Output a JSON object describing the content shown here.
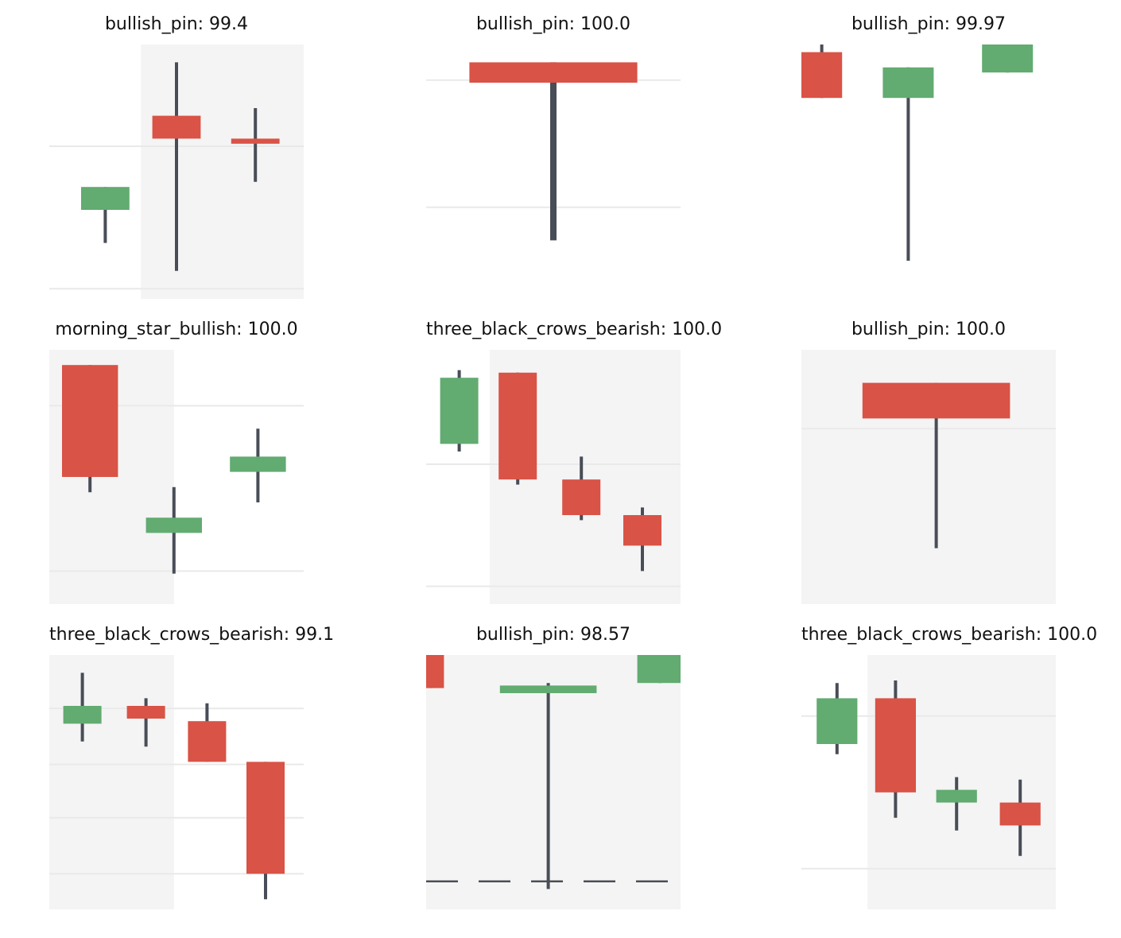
{
  "colors": {
    "bullish": "#62ab71",
    "bearish": "#d95346",
    "wick": "#484d57",
    "shade": "#f4f4f4",
    "grid": "#e9e9e9"
  },
  "chart_data": [
    {
      "type": "candlestick",
      "title": "bullish_pin: 99.4",
      "ylim": [
        0,
        100
      ],
      "shade": [
        0.36,
        1.0
      ],
      "grid": [
        [
          60,
          "solid"
        ],
        [
          4,
          "solid"
        ]
      ],
      "candles": [
        {
          "x": 0.22,
          "w": 0.19,
          "open": 35,
          "close": 44,
          "high": 44,
          "low": 22
        },
        {
          "x": 0.5,
          "w": 0.19,
          "open": 72,
          "close": 63,
          "high": 93,
          "low": 11
        },
        {
          "x": 0.81,
          "w": 0.19,
          "open": 63,
          "close": 61,
          "high": 75,
          "low": 46
        }
      ]
    },
    {
      "type": "candlestick",
      "title": "bullish_pin: 100.0",
      "ylim": [
        0,
        100
      ],
      "shade": [
        0.0,
        0.0
      ],
      "grid": [
        [
          86,
          "solid"
        ],
        [
          36,
          "solid"
        ]
      ],
      "candles": [
        {
          "x": 0.5,
          "w": 0.66,
          "open": 93,
          "close": 85,
          "high": 93,
          "low": 23
        }
      ]
    },
    {
      "type": "candlestick",
      "title": "bullish_pin: 99.97",
      "ylim": [
        0,
        100
      ],
      "shade": [
        0.0,
        0.0
      ],
      "grid": [],
      "candles": [
        {
          "x": 0.08,
          "w": 0.16,
          "open": 97,
          "close": 79,
          "high": 100,
          "low": 79
        },
        {
          "x": 0.42,
          "w": 0.2,
          "open": 79,
          "close": 91,
          "high": 91,
          "low": 15
        },
        {
          "x": 0.81,
          "w": 0.2,
          "open": 89,
          "close": 100,
          "high": 100,
          "low": 89
        }
      ]
    },
    {
      "type": "candlestick",
      "title": "morning_star_bullish: 100.0",
      "ylim": [
        0,
        100
      ],
      "shade": [
        0.0,
        0.49
      ],
      "grid": [
        [
          78,
          "solid"
        ],
        [
          13,
          "solid"
        ]
      ],
      "candles": [
        {
          "x": 0.16,
          "w": 0.22,
          "open": 94,
          "close": 50,
          "high": 94,
          "low": 44
        },
        {
          "x": 0.49,
          "w": 0.22,
          "open": 28,
          "close": 34,
          "high": 46,
          "low": 12
        },
        {
          "x": 0.82,
          "w": 0.22,
          "open": 52,
          "close": 58,
          "high": 69,
          "low": 40
        }
      ]
    },
    {
      "type": "candlestick",
      "title": "three_black_crows_bearish: 100.0",
      "ylim": [
        0,
        100
      ],
      "shade": [
        0.25,
        1.0
      ],
      "grid": [
        [
          55,
          "solid"
        ],
        [
          7,
          "solid"
        ]
      ],
      "candles": [
        {
          "x": 0.13,
          "w": 0.15,
          "open": 63,
          "close": 89,
          "high": 92,
          "low": 60
        },
        {
          "x": 0.36,
          "w": 0.15,
          "open": 91,
          "close": 49,
          "high": 91,
          "low": 47
        },
        {
          "x": 0.61,
          "w": 0.15,
          "open": 49,
          "close": 35,
          "high": 58,
          "low": 33
        },
        {
          "x": 0.85,
          "w": 0.15,
          "open": 35,
          "close": 23,
          "high": 38,
          "low": 13
        }
      ]
    },
    {
      "type": "candlestick",
      "title": "bullish_pin: 100.0",
      "ylim": [
        0,
        100
      ],
      "shade": [
        0.0,
        1.0
      ],
      "grid": [
        [
          69,
          "solid"
        ]
      ],
      "candles": [
        {
          "x": 0.53,
          "w": 0.58,
          "open": 87,
          "close": 73,
          "high": 87,
          "low": 22
        }
      ]
    },
    {
      "type": "candlestick",
      "title": "three_black_crows_bearish: 99.1",
      "ylim": [
        0,
        100
      ],
      "shade": [
        0.0,
        0.49
      ],
      "grid": [
        [
          79,
          "solid"
        ],
        [
          57,
          "solid"
        ],
        [
          36,
          "solid"
        ],
        [
          14,
          "solid"
        ]
      ],
      "candles": [
        {
          "x": 0.13,
          "w": 0.15,
          "open": 73,
          "close": 80,
          "high": 93,
          "low": 66
        },
        {
          "x": 0.38,
          "w": 0.15,
          "open": 80,
          "close": 75,
          "high": 83,
          "low": 64
        },
        {
          "x": 0.62,
          "w": 0.15,
          "open": 74,
          "close": 58,
          "high": 81,
          "low": 58
        },
        {
          "x": 0.85,
          "w": 0.15,
          "open": 58,
          "close": 14,
          "high": 58,
          "low": 4
        }
      ]
    },
    {
      "type": "candlestick",
      "title": "bullish_pin: 98.57",
      "ylim": [
        0,
        100
      ],
      "shade": [
        0.0,
        1.0
      ],
      "grid": [
        [
          11,
          "dashed"
        ]
      ],
      "candles": [
        {
          "x": 0.02,
          "w": 0.1,
          "open": 100,
          "close": 87,
          "high": 100,
          "low": 87
        },
        {
          "x": 0.48,
          "w": 0.38,
          "open": 85,
          "close": 88,
          "high": 89,
          "low": 8
        },
        {
          "x": 0.92,
          "w": 0.18,
          "open": 89,
          "close": 100,
          "high": 100,
          "low": 89
        }
      ]
    },
    {
      "type": "candlestick",
      "title": "three_black_crows_bearish: 100.0",
      "ylim": [
        0,
        100
      ],
      "shade": [
        0.26,
        1.0
      ],
      "grid": [
        [
          76,
          "solid"
        ],
        [
          16,
          "solid"
        ]
      ],
      "candles": [
        {
          "x": 0.14,
          "w": 0.16,
          "open": 65,
          "close": 83,
          "high": 89,
          "low": 61
        },
        {
          "x": 0.37,
          "w": 0.16,
          "open": 83,
          "close": 46,
          "high": 90,
          "low": 36
        },
        {
          "x": 0.61,
          "w": 0.16,
          "open": 42,
          "close": 47,
          "high": 52,
          "low": 31
        },
        {
          "x": 0.86,
          "w": 0.16,
          "open": 42,
          "close": 33,
          "high": 51,
          "low": 21
        }
      ]
    }
  ]
}
